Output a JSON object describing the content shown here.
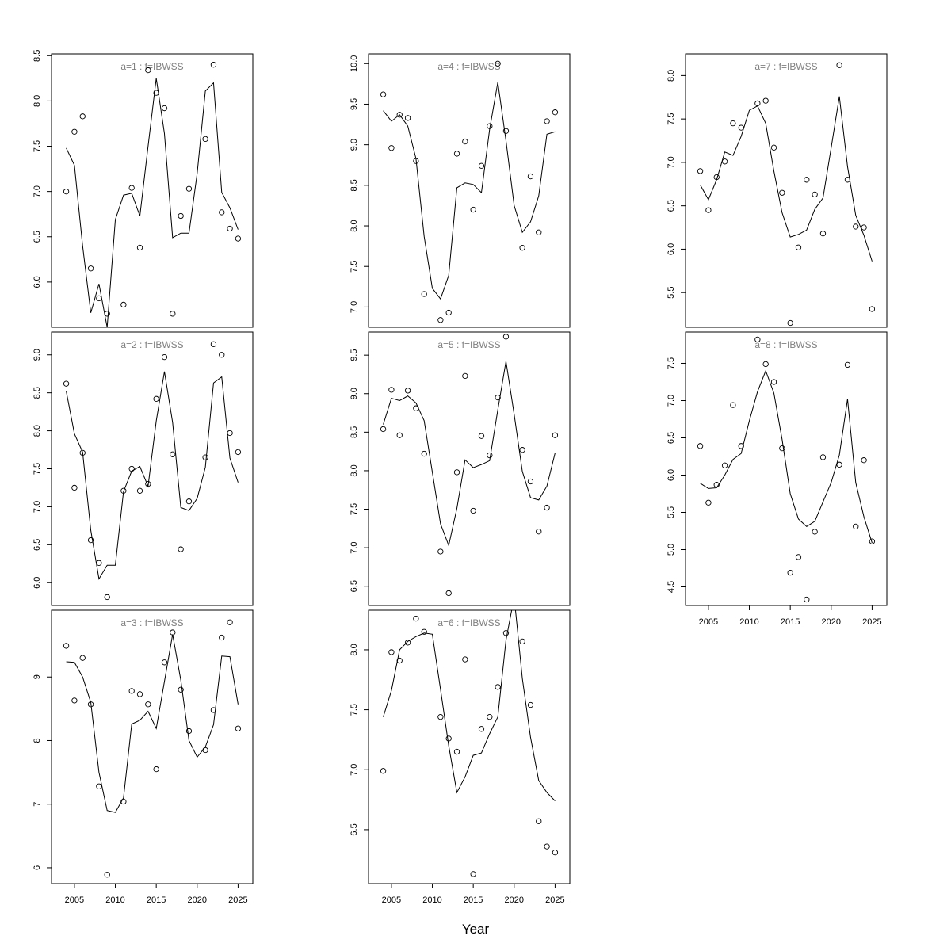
{
  "figure": {
    "xlabel": "Year"
  },
  "chart_data": [
    {
      "type": "scatter",
      "title": "a=1  :  f=IBWSS",
      "x": [
        2004,
        2005,
        2006,
        2007,
        2008,
        2009,
        2010,
        2011,
        2012,
        2013,
        2014,
        2015,
        2016,
        2017,
        2018,
        2019,
        2020,
        2021,
        2022,
        2023,
        2024,
        2025
      ],
      "series": [
        {
          "kind": "points",
          "values": [
            7.0,
            7.66,
            7.83,
            6.15,
            5.82,
            5.65,
            null,
            5.75,
            7.04,
            6.38,
            8.34,
            8.09,
            7.92,
            5.65,
            6.73,
            7.03,
            null,
            7.58,
            8.4,
            6.77,
            6.59,
            6.48
          ]
        },
        {
          "kind": "line",
          "values": [
            7.48,
            7.29,
            6.4,
            5.66,
            5.98,
            5.5,
            6.69,
            6.96,
            6.98,
            6.73,
            7.5,
            8.25,
            7.64,
            6.49,
            6.54,
            6.54,
            7.2,
            8.11,
            8.2,
            6.99,
            6.82,
            6.58
          ]
        }
      ],
      "xlim": [
        2002.2,
        2026.8
      ],
      "ylim": [
        5.5,
        8.52
      ],
      "yticks": [
        6.0,
        6.5,
        7.0,
        7.5,
        8.0,
        8.5
      ],
      "xticks": [],
      "ytick_labels": [
        "6.0",
        "6.5",
        "7.0",
        "7.5",
        "8.0",
        "8.5"
      ],
      "xtick_labels": []
    },
    {
      "type": "scatter",
      "title": "a=2  :  f=IBWSS",
      "x": [
        2004,
        2005,
        2006,
        2007,
        2008,
        2009,
        2010,
        2011,
        2012,
        2013,
        2014,
        2015,
        2016,
        2017,
        2018,
        2019,
        2020,
        2021,
        2022,
        2023,
        2024,
        2025
      ],
      "series": [
        {
          "kind": "points",
          "values": [
            8.62,
            7.25,
            7.71,
            6.56,
            6.26,
            5.81,
            null,
            7.21,
            7.5,
            7.21,
            7.3,
            8.42,
            8.97,
            7.69,
            6.44,
            7.07,
            null,
            7.65,
            9.14,
            9.0,
            7.97,
            7.72
          ]
        },
        {
          "kind": "line",
          "values": [
            8.52,
            7.96,
            7.72,
            6.69,
            6.05,
            6.23,
            6.23,
            7.2,
            7.47,
            7.53,
            7.27,
            8.13,
            8.78,
            8.11,
            6.99,
            6.95,
            7.11,
            7.52,
            8.63,
            8.71,
            7.64,
            7.32
          ]
        }
      ],
      "xlim": [
        2002.2,
        2026.8
      ],
      "ylim": [
        5.7,
        9.3
      ],
      "yticks": [
        6.0,
        6.5,
        7.0,
        7.5,
        8.0,
        8.5,
        9.0
      ],
      "xticks": [],
      "ytick_labels": [
        "6.0",
        "6.5",
        "7.0",
        "7.5",
        "8.0",
        "8.5",
        "9.0"
      ],
      "xtick_labels": []
    },
    {
      "type": "scatter",
      "title": "a=3  :  f=IBWSS",
      "x": [
        2004,
        2005,
        2006,
        2007,
        2008,
        2009,
        2010,
        2011,
        2012,
        2013,
        2014,
        2015,
        2016,
        2017,
        2018,
        2019,
        2020,
        2021,
        2022,
        2023,
        2024,
        2025
      ],
      "series": [
        {
          "kind": "points",
          "values": [
            9.49,
            8.63,
            9.3,
            8.57,
            7.28,
            5.89,
            null,
            7.04,
            8.78,
            8.73,
            8.57,
            7.55,
            9.23,
            9.7,
            8.8,
            8.15,
            null,
            7.85,
            8.48,
            9.62,
            9.86,
            8.19
          ]
        },
        {
          "kind": "line",
          "values": [
            9.24,
            9.23,
            9.0,
            8.6,
            7.5,
            6.9,
            6.87,
            7.1,
            8.26,
            8.32,
            8.46,
            8.19,
            8.93,
            9.67,
            8.95,
            8.0,
            7.74,
            7.9,
            8.25,
            9.33,
            9.32,
            8.57
          ]
        }
      ],
      "xlim": [
        2002.2,
        2026.8
      ],
      "ylim": [
        5.75,
        10.05
      ],
      "yticks": [
        6,
        7,
        8,
        9
      ],
      "xticks": [
        2005,
        2010,
        2015,
        2020,
        2025
      ],
      "ytick_labels": [
        "6",
        "7",
        "8",
        "9"
      ],
      "xtick_labels": [
        "2005",
        "2010",
        "2015",
        "2020",
        "2025"
      ]
    },
    {
      "type": "scatter",
      "title": "a=4  :  f=IBWSS",
      "x": [
        2004,
        2005,
        2006,
        2007,
        2008,
        2009,
        2010,
        2011,
        2012,
        2013,
        2014,
        2015,
        2016,
        2017,
        2018,
        2019,
        2020,
        2021,
        2022,
        2023,
        2024,
        2025
      ],
      "series": [
        {
          "kind": "points",
          "values": [
            9.62,
            8.96,
            9.37,
            9.33,
            8.8,
            7.16,
            null,
            6.84,
            6.93,
            8.89,
            9.04,
            8.2,
            8.74,
            9.23,
            10.0,
            9.17,
            null,
            7.73,
            8.61,
            7.92,
            9.29,
            9.4
          ]
        },
        {
          "kind": "line",
          "values": [
            9.42,
            9.29,
            9.37,
            9.23,
            8.83,
            7.87,
            7.23,
            7.1,
            7.39,
            8.47,
            8.53,
            8.51,
            8.41,
            9.19,
            9.77,
            9.05,
            8.25,
            7.92,
            8.05,
            8.37,
            9.13,
            9.16
          ]
        }
      ],
      "xlim": [
        2002.2,
        2026.8
      ],
      "ylim": [
        6.75,
        10.12
      ],
      "yticks": [
        7.0,
        7.5,
        8.0,
        8.5,
        9.0,
        9.5,
        10.0
      ],
      "xticks": [],
      "ytick_labels": [
        "7.0",
        "7.5",
        "8.0",
        "8.5",
        "9.0",
        "9.5",
        "10.0"
      ],
      "xtick_labels": []
    },
    {
      "type": "scatter",
      "title": "a=5  :  f=IBWSS",
      "x": [
        2004,
        2005,
        2006,
        2007,
        2008,
        2009,
        2010,
        2011,
        2012,
        2013,
        2014,
        2015,
        2016,
        2017,
        2018,
        2019,
        2020,
        2021,
        2022,
        2023,
        2024,
        2025
      ],
      "series": [
        {
          "kind": "points",
          "values": [
            8.54,
            9.05,
            8.46,
            9.04,
            8.81,
            8.22,
            null,
            6.95,
            6.41,
            7.98,
            9.23,
            7.48,
            8.45,
            8.2,
            8.95,
            9.74,
            null,
            8.27,
            7.86,
            7.21,
            7.52,
            8.46
          ]
        },
        {
          "kind": "line",
          "values": [
            8.6,
            8.94,
            8.91,
            8.97,
            8.88,
            8.65,
            7.98,
            7.31,
            7.03,
            7.51,
            8.14,
            8.04,
            8.08,
            8.13,
            8.79,
            9.42,
            8.73,
            7.99,
            7.65,
            7.62,
            7.8,
            8.23
          ]
        }
      ],
      "xlim": [
        2002.2,
        2026.8
      ],
      "ylim": [
        6.25,
        9.8
      ],
      "yticks": [
        6.5,
        7.0,
        7.5,
        8.0,
        8.5,
        9.0,
        9.5
      ],
      "xticks": [],
      "ytick_labels": [
        "6.5",
        "7.0",
        "7.5",
        "8.0",
        "8.5",
        "9.0",
        "9.5"
      ],
      "xtick_labels": []
    },
    {
      "type": "scatter",
      "title": "a=6  :  f=IBWSS",
      "x": [
        2004,
        2005,
        2006,
        2007,
        2008,
        2009,
        2010,
        2011,
        2012,
        2013,
        2014,
        2015,
        2016,
        2017,
        2018,
        2019,
        2020,
        2021,
        2022,
        2023,
        2024,
        2025
      ],
      "series": [
        {
          "kind": "points",
          "values": [
            6.99,
            7.98,
            7.91,
            8.06,
            8.26,
            8.15,
            null,
            7.44,
            7.26,
            7.15,
            7.92,
            6.13,
            7.34,
            7.44,
            7.69,
            8.14,
            null,
            8.07,
            7.54,
            6.57,
            6.36,
            6.31
          ]
        },
        {
          "kind": "line",
          "values": [
            7.44,
            7.66,
            8.0,
            8.07,
            8.11,
            8.14,
            8.13,
            7.67,
            7.2,
            6.81,
            6.94,
            7.12,
            7.14,
            7.3,
            7.44,
            8.08,
            8.44,
            7.76,
            7.27,
            6.91,
            6.81,
            6.74
          ]
        }
      ],
      "xlim": [
        2002.2,
        2026.8
      ],
      "ylim": [
        6.05,
        8.33
      ],
      "yticks": [
        6.5,
        7.0,
        7.5,
        8.0
      ],
      "xticks": [
        2005,
        2010,
        2015,
        2020,
        2025
      ],
      "ytick_labels": [
        "6.5",
        "7.0",
        "7.5",
        "8.0"
      ],
      "xtick_labels": [
        "2005",
        "2010",
        "2015",
        "2020",
        "2025"
      ]
    },
    {
      "type": "scatter",
      "title": "a=7  :  f=IBWSS",
      "x": [
        2004,
        2005,
        2006,
        2007,
        2008,
        2009,
        2010,
        2011,
        2012,
        2013,
        2014,
        2015,
        2016,
        2017,
        2018,
        2019,
        2020,
        2021,
        2022,
        2023,
        2024,
        2025
      ],
      "series": [
        {
          "kind": "points",
          "values": [
            6.9,
            6.45,
            6.83,
            7.01,
            7.45,
            7.4,
            null,
            7.68,
            7.71,
            7.17,
            6.65,
            5.15,
            6.02,
            6.8,
            6.63,
            6.18,
            null,
            8.12,
            6.8,
            6.26,
            6.25,
            5.31
          ]
        },
        {
          "kind": "line",
          "values": [
            6.74,
            6.57,
            6.8,
            7.12,
            7.08,
            7.3,
            7.6,
            7.65,
            7.45,
            6.9,
            6.42,
            6.14,
            6.17,
            6.22,
            6.46,
            6.59,
            7.17,
            7.76,
            6.95,
            6.39,
            6.16,
            5.86
          ]
        }
      ],
      "xlim": [
        2002.2,
        2026.8
      ],
      "ylim": [
        5.1,
        8.25
      ],
      "yticks": [
        5.5,
        6.0,
        6.5,
        7.0,
        7.5,
        8.0
      ],
      "xticks": [],
      "ytick_labels": [
        "5.5",
        "6.0",
        "6.5",
        "7.0",
        "7.5",
        "8.0"
      ],
      "xtick_labels": []
    },
    {
      "type": "scatter",
      "title": "a=8  :  f=IBWSS",
      "x": [
        2004,
        2005,
        2006,
        2007,
        2008,
        2009,
        2010,
        2011,
        2012,
        2013,
        2014,
        2015,
        2016,
        2017,
        2018,
        2019,
        2020,
        2021,
        2022,
        2023,
        2024,
        2025
      ],
      "series": [
        {
          "kind": "points",
          "values": [
            6.39,
            5.63,
            5.87,
            6.13,
            6.94,
            6.39,
            null,
            7.82,
            7.49,
            7.25,
            6.36,
            4.69,
            4.9,
            4.33,
            5.24,
            6.24,
            null,
            6.14,
            7.48,
            5.31,
            6.2,
            5.11
          ]
        },
        {
          "kind": "line",
          "values": [
            5.89,
            5.82,
            5.83,
            6.0,
            6.21,
            6.29,
            6.73,
            7.12,
            7.4,
            7.1,
            6.48,
            5.75,
            5.41,
            5.31,
            5.38,
            5.64,
            5.9,
            6.27,
            7.02,
            5.9,
            5.44,
            5.09
          ]
        }
      ],
      "xlim": [
        2002.2,
        2026.8
      ],
      "ylim": [
        4.25,
        7.92
      ],
      "yticks": [
        4.5,
        5.0,
        5.5,
        6.0,
        6.5,
        7.0,
        7.5
      ],
      "xticks": [
        2005,
        2010,
        2015,
        2020,
        2025
      ],
      "ytick_labels": [
        "4.5",
        "5.0",
        "5.5",
        "6.0",
        "6.5",
        "7.0",
        "7.5"
      ],
      "xtick_labels": [
        "2005",
        "2010",
        "2015",
        "2020",
        "2025"
      ]
    }
  ]
}
